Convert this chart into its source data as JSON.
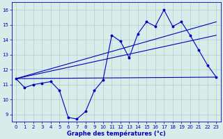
{
  "xlabel": "Graphe des températures (°c)",
  "bg_color": "#d8ecea",
  "grid_color": "#b0cccc",
  "line_color": "#0000bb",
  "xlim": [
    -0.5,
    23.5
  ],
  "ylim": [
    8.5,
    16.5
  ],
  "xticks": [
    0,
    1,
    2,
    3,
    4,
    5,
    6,
    7,
    8,
    9,
    10,
    11,
    12,
    13,
    14,
    15,
    16,
    17,
    18,
    19,
    20,
    21,
    22,
    23
  ],
  "yticks": [
    9,
    10,
    11,
    12,
    13,
    14,
    15,
    16
  ],
  "hourly_x": [
    0,
    1,
    2,
    3,
    4,
    5,
    6,
    7,
    8,
    9,
    10,
    11,
    12,
    13,
    14,
    15,
    16,
    17,
    18,
    19,
    20,
    21,
    22,
    23
  ],
  "hourly_y": [
    11.4,
    10.8,
    11.0,
    11.1,
    11.2,
    10.6,
    8.8,
    8.7,
    9.2,
    10.6,
    11.3,
    14.3,
    13.9,
    12.8,
    14.4,
    15.2,
    14.9,
    16.0,
    14.9,
    15.2,
    14.3,
    13.3,
    12.3,
    11.5
  ],
  "flat_line": {
    "x": [
      0,
      23
    ],
    "y": [
      11.4,
      11.5
    ]
  },
  "trend_low": {
    "x": [
      0,
      23
    ],
    "y": [
      11.4,
      14.3
    ]
  },
  "trend_high": {
    "x": [
      0,
      23
    ],
    "y": [
      11.4,
      15.2
    ]
  },
  "xlabel_fontsize": 6,
  "tick_fontsize": 5
}
